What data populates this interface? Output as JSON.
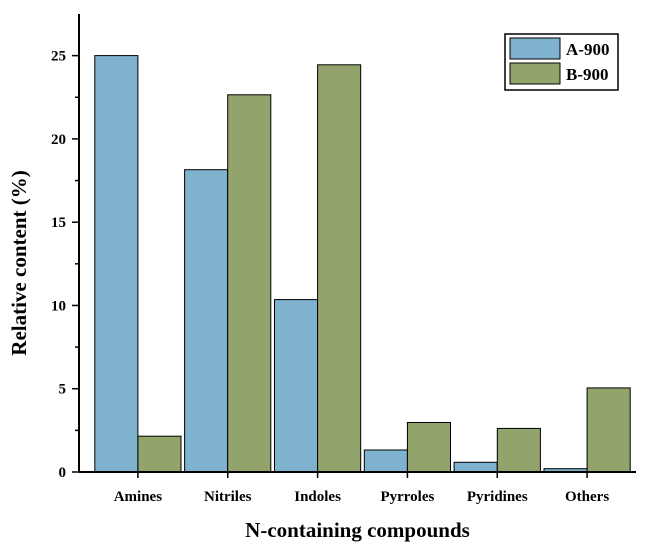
{
  "chart_data": {
    "type": "bar",
    "categories": [
      "Amines",
      "Nitriles",
      "Indoles",
      "Pyrroles",
      "Pyridines",
      "Others"
    ],
    "series": [
      {
        "name": "A-900",
        "color": "#7FB2CF",
        "values": [
          25.0,
          18.15,
          10.35,
          1.32,
          0.58,
          0.2
        ]
      },
      {
        "name": "B-900",
        "color": "#93A36C",
        "values": [
          2.15,
          22.65,
          24.45,
          2.97,
          2.62,
          5.05
        ]
      }
    ],
    "xlabel": "N-containing compounds",
    "ylabel": "Relative content (%)",
    "ylim": [
      0,
      27.5
    ],
    "yticks": [
      0,
      5,
      10,
      15,
      20,
      25
    ],
    "y_tick_labels": [
      "0",
      "5",
      "10",
      "15",
      "20",
      "25"
    ],
    "legend_position": "top-right",
    "grid": false
  }
}
